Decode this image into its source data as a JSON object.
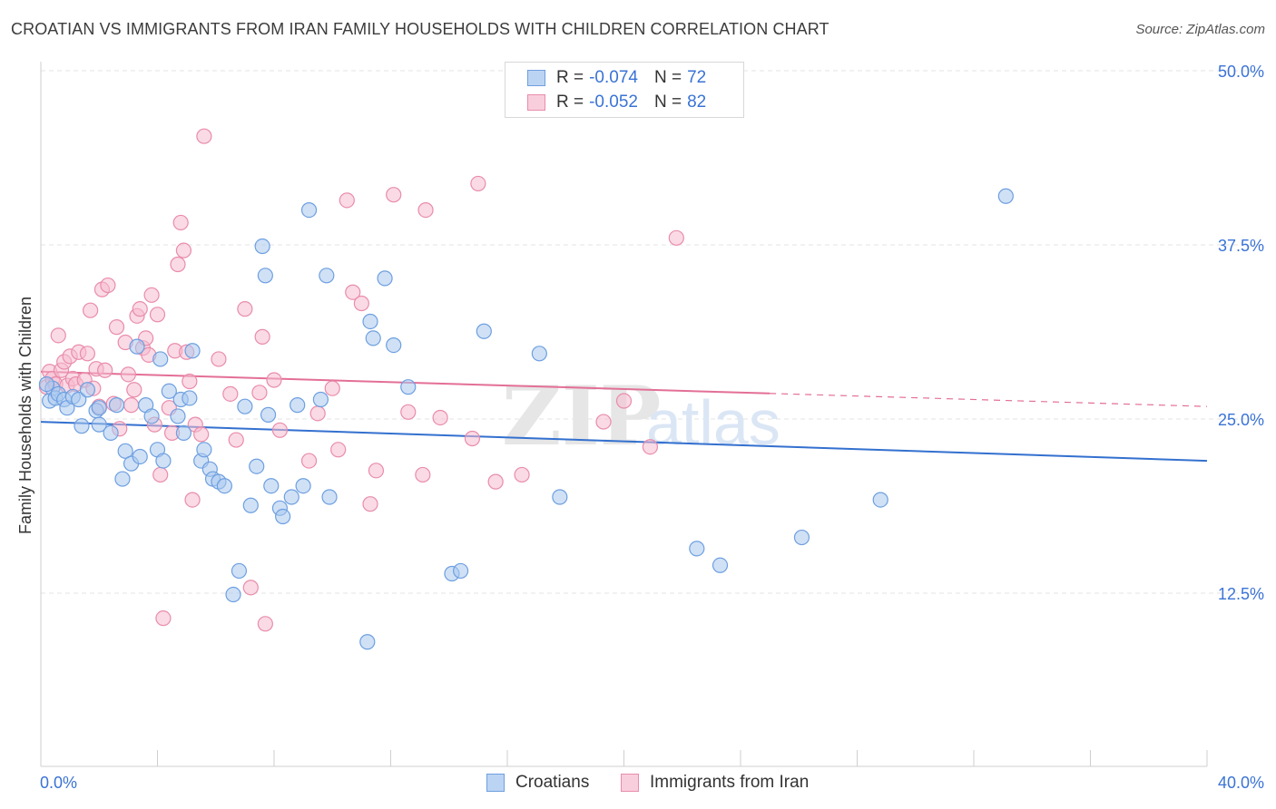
{
  "header": {
    "title": "CROATIAN VS IMMIGRANTS FROM IRAN FAMILY HOUSEHOLDS WITH CHILDREN CORRELATION CHART",
    "source": "Source: ZipAtlas.com"
  },
  "watermark": {
    "zip": "ZIP",
    "atlas": "atlas"
  },
  "legend": {
    "rows": [
      {
        "r_label": "R =",
        "r_value": "-0.074",
        "n_label": "N =",
        "n_value": "72"
      },
      {
        "r_label": "R =",
        "r_value": "-0.052",
        "n_label": "N =",
        "n_value": "82"
      }
    ]
  },
  "bottom_legend": {
    "series1": "Croatians",
    "series2": "Immigrants from Iran"
  },
  "colors": {
    "blue_fill": "#aac8ef",
    "blue_stroke": "#6d9fe0",
    "blue_line": "#3370cf",
    "pink_fill": "#f6bbcf",
    "pink_stroke": "#e98cab",
    "pink_line": "#e36f97",
    "axis_label": "#3a73d6",
    "grid": "#e3e3e3"
  },
  "chart_data": {
    "type": "scatter",
    "title": "CROATIAN VS IMMIGRANTS FROM IRAN FAMILY HOUSEHOLDS WITH CHILDREN CORRELATION CHART",
    "xlabel": "",
    "ylabel": "Family Households with Children",
    "xlim": [
      0,
      40
    ],
    "ylim": [
      0,
      50
    ],
    "x_tick_labels": [
      "0.0%",
      "40.0%"
    ],
    "y_ticks": [
      12.5,
      25.0,
      37.5,
      50.0
    ],
    "y_tick_labels": [
      "12.5%",
      "25.0%",
      "37.5%",
      "50.0%"
    ],
    "grid": true,
    "series": [
      {
        "name": "Croatians",
        "r": -0.074,
        "n": 72,
        "trend": {
          "x": [
            0,
            40
          ],
          "y": [
            24.8,
            22.0
          ],
          "dashed_from": null
        },
        "points": [
          [
            0.3,
            26.3
          ],
          [
            0.4,
            27.2
          ],
          [
            0.5,
            26.5
          ],
          [
            0.6,
            26.8
          ],
          [
            0.8,
            26.4
          ],
          [
            0.9,
            25.8
          ],
          [
            1.1,
            26.6
          ],
          [
            1.3,
            26.4
          ],
          [
            1.6,
            27.1
          ],
          [
            1.4,
            24.5
          ],
          [
            1.9,
            25.6
          ],
          [
            2.0,
            24.6
          ],
          [
            2.4,
            24.0
          ],
          [
            2.6,
            26.0
          ],
          [
            2.8,
            20.7
          ],
          [
            2.9,
            22.7
          ],
          [
            3.1,
            21.8
          ],
          [
            3.3,
            30.2
          ],
          [
            3.4,
            22.3
          ],
          [
            3.6,
            26.0
          ],
          [
            3.8,
            25.2
          ],
          [
            4.0,
            22.8
          ],
          [
            4.1,
            29.3
          ],
          [
            4.2,
            22.0
          ],
          [
            4.4,
            27.0
          ],
          [
            4.7,
            25.2
          ],
          [
            4.8,
            26.4
          ],
          [
            4.9,
            24.0
          ],
          [
            5.1,
            26.5
          ],
          [
            5.2,
            29.9
          ],
          [
            5.5,
            22.0
          ],
          [
            5.6,
            22.8
          ],
          [
            5.8,
            21.4
          ],
          [
            5.9,
            20.7
          ],
          [
            6.1,
            20.5
          ],
          [
            6.3,
            20.2
          ],
          [
            6.6,
            12.4
          ],
          [
            6.8,
            14.1
          ],
          [
            7.0,
            25.9
          ],
          [
            7.2,
            18.8
          ],
          [
            7.4,
            21.6
          ],
          [
            7.6,
            37.4
          ],
          [
            7.7,
            35.3
          ],
          [
            7.8,
            25.3
          ],
          [
            7.9,
            20.2
          ],
          [
            8.2,
            18.6
          ],
          [
            8.3,
            18.0
          ],
          [
            8.6,
            19.4
          ],
          [
            8.8,
            26.0
          ],
          [
            9.0,
            20.2
          ],
          [
            9.2,
            40.0
          ],
          [
            9.6,
            26.4
          ],
          [
            9.8,
            35.3
          ],
          [
            9.9,
            19.4
          ],
          [
            11.3,
            32.0
          ],
          [
            11.4,
            30.8
          ],
          [
            11.2,
            9.0
          ],
          [
            11.8,
            35.1
          ],
          [
            12.1,
            30.3
          ],
          [
            12.6,
            27.3
          ],
          [
            14.1,
            13.9
          ],
          [
            14.4,
            14.1
          ],
          [
            15.2,
            31.3
          ],
          [
            17.1,
            29.7
          ],
          [
            17.8,
            19.4
          ],
          [
            22.5,
            15.7
          ],
          [
            23.3,
            14.5
          ],
          [
            26.1,
            16.5
          ],
          [
            28.8,
            19.2
          ],
          [
            33.1,
            41.0
          ],
          [
            0.2,
            27.5
          ],
          [
            2.0,
            25.8
          ]
        ]
      },
      {
        "name": "Immigrants from Iran",
        "r": -0.052,
        "n": 82,
        "trend": {
          "x": [
            0,
            40
          ],
          "y": [
            28.4,
            25.9
          ],
          "dashed_from": 25
        },
        "points": [
          [
            0.2,
            27.3
          ],
          [
            0.3,
            28.4
          ],
          [
            0.4,
            27.9
          ],
          [
            0.5,
            27.5
          ],
          [
            0.6,
            31.0
          ],
          [
            0.7,
            28.5
          ],
          [
            0.8,
            29.1
          ],
          [
            0.9,
            27.4
          ],
          [
            1.0,
            29.5
          ],
          [
            1.1,
            27.9
          ],
          [
            1.2,
            27.5
          ],
          [
            1.3,
            29.8
          ],
          [
            1.5,
            27.8
          ],
          [
            1.6,
            29.7
          ],
          [
            1.7,
            32.8
          ],
          [
            1.8,
            27.2
          ],
          [
            1.9,
            28.6
          ],
          [
            2.0,
            25.9
          ],
          [
            2.2,
            28.5
          ],
          [
            2.1,
            34.3
          ],
          [
            2.3,
            34.6
          ],
          [
            2.5,
            26.1
          ],
          [
            2.6,
            31.6
          ],
          [
            2.7,
            24.3
          ],
          [
            2.9,
            30.5
          ],
          [
            3.0,
            28.2
          ],
          [
            3.1,
            26.0
          ],
          [
            3.2,
            27.1
          ],
          [
            3.3,
            32.4
          ],
          [
            3.4,
            32.9
          ],
          [
            3.5,
            30.1
          ],
          [
            3.6,
            30.8
          ],
          [
            3.7,
            29.6
          ],
          [
            3.8,
            33.9
          ],
          [
            3.9,
            24.6
          ],
          [
            4.0,
            32.5
          ],
          [
            4.1,
            21.0
          ],
          [
            4.2,
            10.7
          ],
          [
            4.4,
            25.8
          ],
          [
            4.5,
            24.0
          ],
          [
            4.6,
            29.9
          ],
          [
            4.7,
            36.1
          ],
          [
            4.8,
            39.1
          ],
          [
            4.9,
            37.1
          ],
          [
            5.0,
            29.8
          ],
          [
            5.1,
            27.7
          ],
          [
            5.2,
            19.2
          ],
          [
            5.3,
            24.6
          ],
          [
            5.5,
            23.9
          ],
          [
            5.6,
            45.3
          ],
          [
            6.1,
            29.3
          ],
          [
            6.5,
            26.8
          ],
          [
            6.7,
            23.5
          ],
          [
            7.0,
            32.9
          ],
          [
            7.2,
            12.9
          ],
          [
            7.5,
            26.9
          ],
          [
            7.6,
            30.9
          ],
          [
            7.7,
            10.3
          ],
          [
            8.0,
            27.8
          ],
          [
            8.2,
            24.2
          ],
          [
            9.2,
            22.0
          ],
          [
            9.5,
            25.4
          ],
          [
            10.0,
            27.2
          ],
          [
            10.2,
            22.8
          ],
          [
            10.5,
            40.7
          ],
          [
            10.7,
            34.1
          ],
          [
            11.0,
            33.3
          ],
          [
            11.3,
            18.9
          ],
          [
            11.5,
            21.3
          ],
          [
            12.1,
            41.1
          ],
          [
            12.6,
            25.5
          ],
          [
            13.1,
            21.0
          ],
          [
            13.2,
            40.0
          ],
          [
            13.7,
            25.1
          ],
          [
            14.8,
            23.6
          ],
          [
            15.0,
            41.9
          ],
          [
            15.6,
            20.5
          ],
          [
            16.5,
            21.0
          ],
          [
            19.3,
            24.8
          ],
          [
            20.0,
            26.3
          ],
          [
            20.9,
            23.0
          ],
          [
            21.8,
            38.0
          ]
        ]
      }
    ]
  }
}
